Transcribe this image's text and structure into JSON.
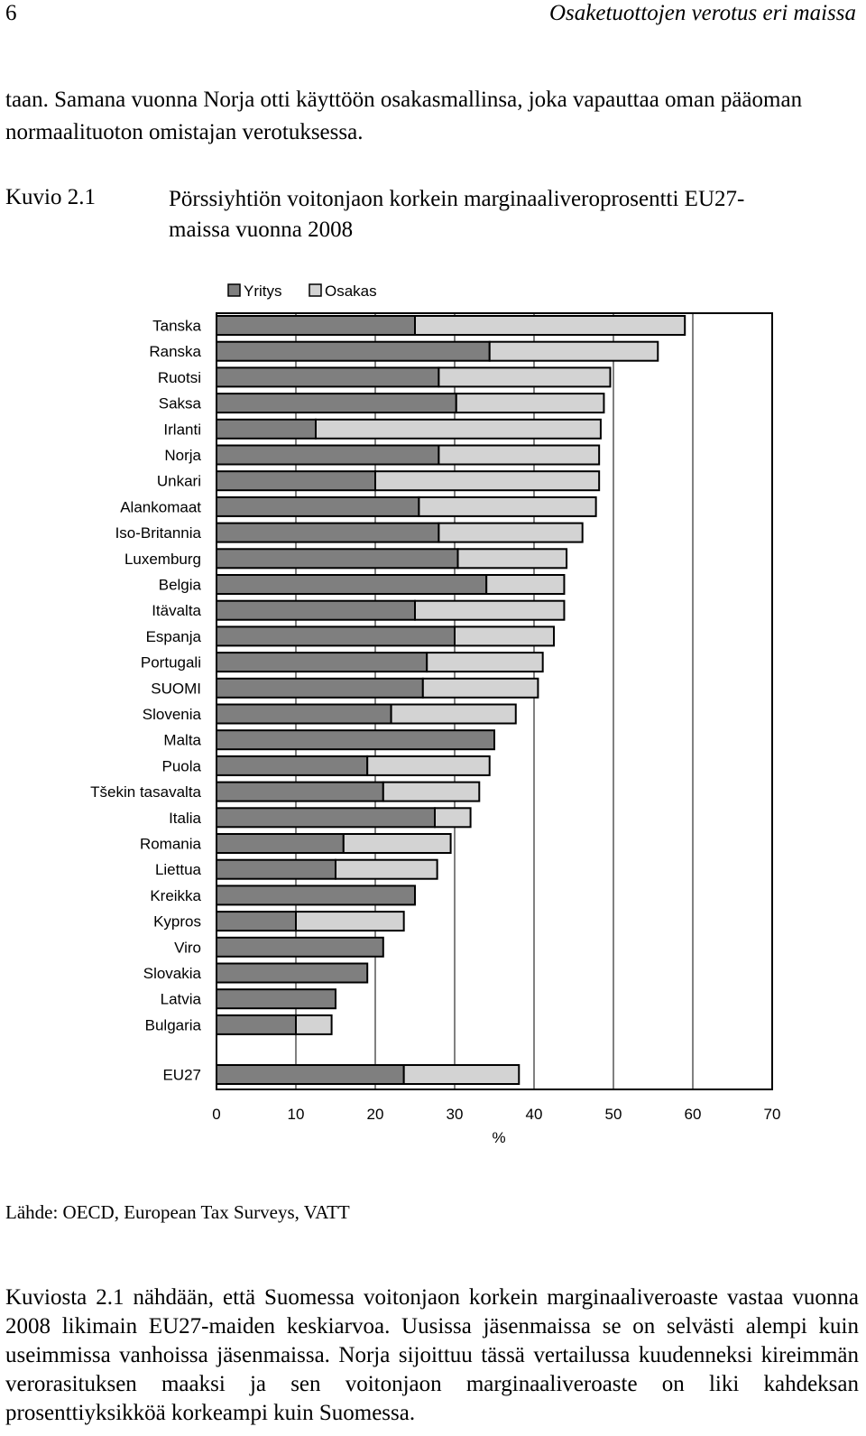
{
  "page": {
    "number": "6",
    "running_header": "Osaketuottojen verotus eri maissa",
    "intro_text": "taan. Samana vuonna Norja otti käyttöön osakasmallinsa, joka vapauttaa oman pääoman normaalituoton omistajan verotuksessa.",
    "figure_number": "Kuvio 2.1",
    "figure_title": "Pörssiyhtiön voitonjaon korkein marginaaliveroprosentti EU27-maissa vuonna 2008",
    "source": "Lähde: OECD, European Tax Surveys, VATT",
    "closing_text": "Kuviosta 2.1 nähdään, että Suomessa voitonjaon korkein marginaaliveroaste vastaa vuonna 2008 likimain EU27-maiden keskiarvoa. Uusissa jäsenmaissa se on selvästi alempi kuin useimmissa vanhoissa jäsenmaissa. Norja sijoittuu tässä vertailussa kuudenneksi kireimmän verorasituksen maaksi ja sen voitonjaon marginaaliveroaste on liki kahdeksan prosenttiyksikköä korkeampi kuin Suomessa."
  },
  "chart_data": {
    "type": "bar",
    "orientation": "horizontal",
    "stacked": true,
    "legend_position": "top",
    "xlabel": "%",
    "xlim": [
      0,
      70
    ],
    "xticks": [
      0,
      10,
      20,
      30,
      40,
      50,
      60,
      70
    ],
    "grid": true,
    "series_colors": {
      "Yritys": "#7f7f7f",
      "Osakas": "#d3d3d3"
    },
    "categories": [
      "Tanska",
      "Ranska",
      "Ruotsi",
      "Saksa",
      "Irlanti",
      "Norja",
      "Unkari",
      "Alankomaat",
      "Iso-Britannia",
      "Luxemburg",
      "Belgia",
      "Itävalta",
      "Espanja",
      "Portugali",
      "SUOMI",
      "Slovenia",
      "Malta",
      "Puola",
      "Tšekin tasavalta",
      "Italia",
      "Romania",
      "Liettua",
      "Kreikka",
      "Kypros",
      "Viro",
      "Slovakia",
      "Latvia",
      "Bulgaria"
    ],
    "series": [
      {
        "name": "Yritys",
        "values": [
          25,
          34.4,
          28,
          30.2,
          12.5,
          28,
          20,
          25.5,
          28,
          30.4,
          34,
          25,
          30,
          26.5,
          26,
          22,
          35,
          19,
          21,
          27.5,
          16,
          15,
          25,
          10,
          21,
          19,
          15,
          10
        ]
      },
      {
        "name": "Osakas",
        "values": [
          34,
          21.2,
          21.6,
          18.6,
          35.9,
          20.2,
          28.2,
          22.3,
          18.1,
          13.7,
          9.8,
          18.8,
          12.5,
          14.6,
          14.5,
          15.7,
          0,
          15.4,
          12.1,
          4.5,
          13.5,
          12.8,
          0,
          13.6,
          0,
          0,
          0,
          4.5
        ]
      }
    ],
    "summary_row": {
      "category": "EU27",
      "Yritys": 23.6,
      "Osakas": 14.5
    }
  }
}
